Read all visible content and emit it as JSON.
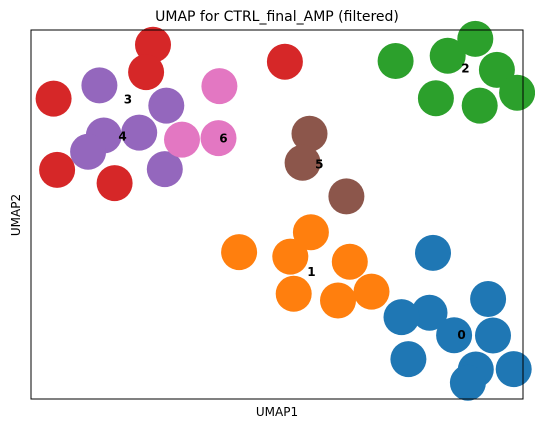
{
  "chart_data": {
    "type": "scatter",
    "title": "UMAP for CTRL_final_AMP (filtered)",
    "xlabel": "UMAP1",
    "ylabel": "UMAP2",
    "xlim": [
      0,
      100
    ],
    "ylim": [
      0,
      100
    ],
    "ticks": "none",
    "grid": false,
    "legend": "none (cluster numbers drawn at cluster centers)",
    "series": [
      {
        "name": "0",
        "color": "#1f77b4",
        "points": [
          [
            81.7,
            39.6
          ],
          [
            92.9,
            27.1
          ],
          [
            81.0,
            23.4
          ],
          [
            86.0,
            17.3
          ],
          [
            93.9,
            17.2
          ],
          [
            75.3,
            22.2
          ],
          [
            90.4,
            8.0
          ],
          [
            88.8,
            4.4
          ],
          [
            76.7,
            10.8
          ],
          [
            98.1,
            8.1
          ]
        ]
      },
      {
        "name": "1",
        "color": "#ff7f0e",
        "points": [
          [
            56.9,
            45.2
          ],
          [
            42.3,
            39.8
          ],
          [
            52.7,
            38.6
          ],
          [
            64.8,
            37.2
          ],
          [
            69.2,
            29.1
          ],
          [
            53.4,
            28.5
          ],
          [
            62.4,
            26.7
          ]
        ]
      },
      {
        "name": "2",
        "color": "#2ca02c",
        "points": [
          [
            90.3,
            97.6
          ],
          [
            84.7,
            93.0
          ],
          [
            74.1,
            91.6
          ],
          [
            94.7,
            89.2
          ],
          [
            98.8,
            83.0
          ],
          [
            82.3,
            81.5
          ],
          [
            91.2,
            79.5
          ]
        ]
      },
      {
        "name": "3",
        "color": "#d62728",
        "points": [
          [
            24.8,
            96.0
          ],
          [
            23.4,
            88.6
          ],
          [
            4.6,
            81.4
          ],
          [
            51.6,
            91.4
          ],
          [
            5.3,
            62.1
          ],
          [
            17.0,
            58.5
          ]
        ]
      },
      {
        "name": "4",
        "color": "#9467bd",
        "points": [
          [
            13.9,
            85.0
          ],
          [
            27.5,
            79.5
          ],
          [
            14.8,
            71.4
          ],
          [
            22.0,
            72.2
          ],
          [
            11.6,
            67.0
          ],
          [
            27.2,
            62.3
          ]
        ]
      },
      {
        "name": "5",
        "color": "#8c564b",
        "points": [
          [
            56.6,
            71.9
          ],
          [
            55.2,
            64.0
          ],
          [
            64.1,
            54.9
          ]
        ]
      },
      {
        "name": "6",
        "color": "#e377c2",
        "points": [
          [
            38.3,
            84.8
          ],
          [
            30.7,
            70.3
          ],
          [
            38.1,
            70.7
          ]
        ]
      }
    ],
    "cluster_labels": [
      {
        "text": "0",
        "x": 87.5,
        "y": 17.3
      },
      {
        "text": "1",
        "x": 57.0,
        "y": 34.4
      },
      {
        "text": "2",
        "x": 88.3,
        "y": 89.6
      },
      {
        "text": "3",
        "x": 19.7,
        "y": 81.2
      },
      {
        "text": "4",
        "x": 18.6,
        "y": 71.2
      },
      {
        "text": "5",
        "x": 58.6,
        "y": 63.6
      },
      {
        "text": "6",
        "x": 39.1,
        "y": 70.6
      }
    ]
  }
}
